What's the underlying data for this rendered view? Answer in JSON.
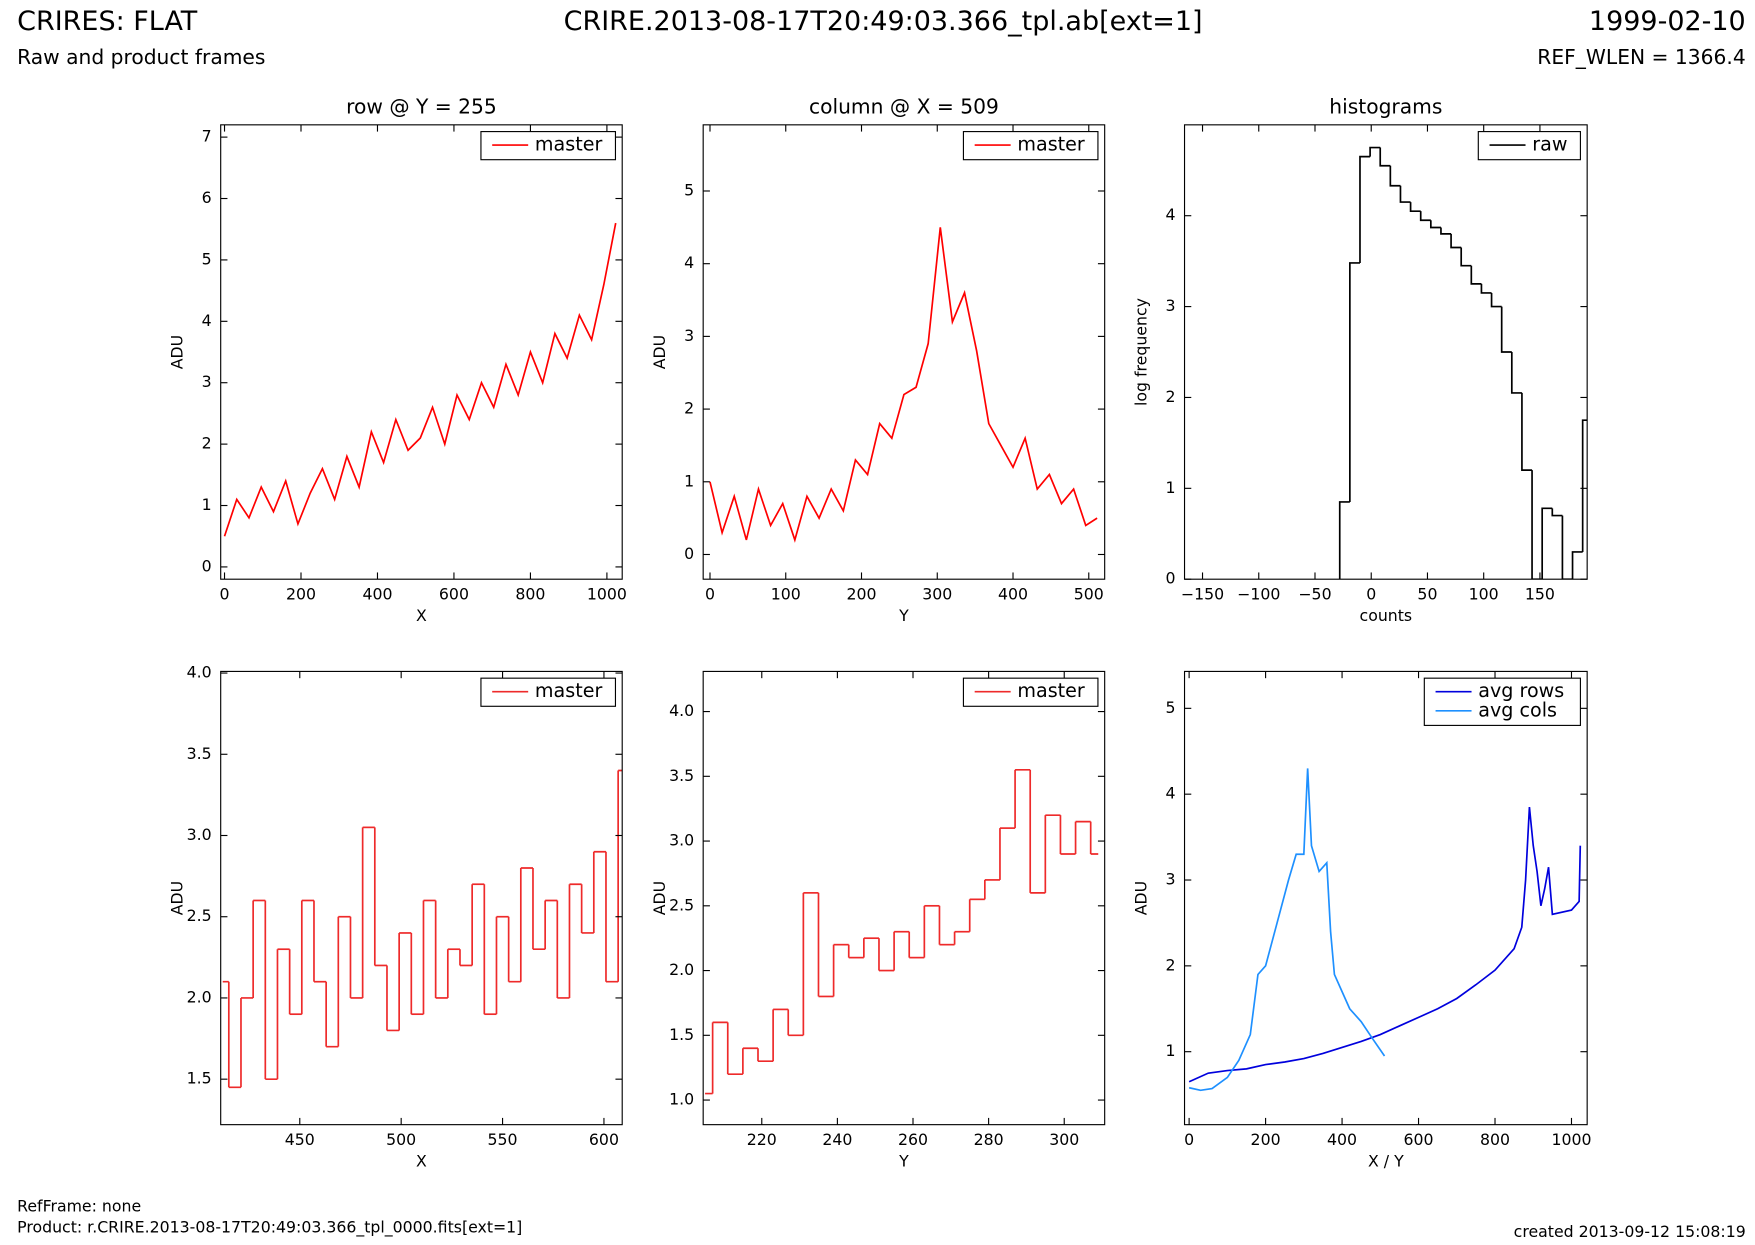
{
  "header": {
    "title": "CRIRES: FLAT",
    "subtitle": "Raw and product frames",
    "file": "CRIRE.2013-08-17T20:49:03.366_tpl.ab[ext=1]",
    "date": "1999-02-10",
    "ref_wlen": "REF_WLEN = 1366.4"
  },
  "footer": {
    "ref_frame": "RefFrame: none",
    "product": "Product: r.CRIRE.2013-08-17T20:49:03.366_tpl_0000.fits[ext=1]",
    "created": "created 2013-09-12 15:08:19"
  },
  "chart_data": [
    {
      "type": "line",
      "title": "row @ Y = 255",
      "xlabel": "X",
      "ylabel": "ADU",
      "legend": "upper right",
      "xlim": [
        -10,
        1040
      ],
      "ylim": [
        -0.2,
        7.2
      ],
      "xticks": [
        0,
        200,
        400,
        600,
        800,
        1000
      ],
      "yticks": [
        0,
        1,
        2,
        3,
        4,
        5,
        6,
        7
      ],
      "series": [
        {
          "name": "master",
          "color": "#ff0000",
          "x": [
            0,
            32,
            64,
            96,
            128,
            160,
            192,
            224,
            256,
            288,
            320,
            352,
            384,
            416,
            448,
            480,
            512,
            544,
            576,
            608,
            640,
            672,
            704,
            736,
            768,
            800,
            832,
            864,
            896,
            928,
            960,
            992,
            1023
          ],
          "values": [
            0.5,
            1.1,
            0.8,
            1.3,
            0.9,
            1.4,
            0.7,
            1.2,
            1.6,
            1.1,
            1.8,
            1.3,
            2.2,
            1.7,
            2.4,
            1.9,
            2.1,
            2.6,
            2.0,
            2.8,
            2.4,
            3.0,
            2.6,
            3.3,
            2.8,
            3.5,
            3.0,
            3.8,
            3.4,
            4.1,
            3.7,
            4.6,
            5.6
          ]
        }
      ]
    },
    {
      "type": "line",
      "title": "column @ X = 509",
      "xlabel": "Y",
      "ylabel": "ADU",
      "legend": "upper right",
      "xlim": [
        -9,
        521
      ],
      "ylim": [
        -0.34,
        5.91
      ],
      "xticks": [
        0,
        100,
        200,
        300,
        400,
        500
      ],
      "yticks": [
        0,
        1,
        2,
        3,
        4,
        5
      ],
      "series": [
        {
          "name": "master",
          "color": "#ff0000",
          "x": [
            0,
            16,
            32,
            48,
            64,
            80,
            96,
            112,
            128,
            144,
            160,
            176,
            192,
            208,
            224,
            240,
            256,
            272,
            288,
            304,
            320,
            336,
            352,
            368,
            384,
            400,
            416,
            432,
            448,
            464,
            480,
            496,
            511
          ],
          "values": [
            1.0,
            0.3,
            0.8,
            0.2,
            0.9,
            0.4,
            0.7,
            0.2,
            0.8,
            0.5,
            0.9,
            0.6,
            1.3,
            1.1,
            1.8,
            1.6,
            2.2,
            2.3,
            2.9,
            4.5,
            3.2,
            3.6,
            2.8,
            1.8,
            1.5,
            1.2,
            1.6,
            0.9,
            1.1,
            0.7,
            0.9,
            0.4,
            0.5
          ]
        }
      ]
    },
    {
      "type": "histogram",
      "title": "histograms",
      "xlabel": "counts",
      "ylabel": "log frequency",
      "legend": "upper right",
      "xlim": [
        -166,
        192
      ],
      "ylim": [
        0,
        5.0
      ],
      "xticks": [
        {
          "value": -150,
          "label": "−150"
        },
        {
          "value": -100,
          "label": "−100"
        },
        {
          "value": -50,
          "label": "−50"
        },
        0,
        50,
        100,
        150
      ],
      "yticks": [
        0,
        1,
        2,
        3,
        4
      ],
      "series": [
        {
          "name": "raw",
          "color": "#000000",
          "bins": [
            -28,
            -19,
            -10,
            -1,
            8,
            17,
            26,
            35,
            44,
            53,
            62,
            71,
            80,
            89,
            98,
            107,
            116,
            125,
            134,
            143,
            152,
            161,
            170,
            179,
            188,
            197
          ],
          "values": [
            0.85,
            3.48,
            4.65,
            4.75,
            4.55,
            4.33,
            4.15,
            4.05,
            3.95,
            3.87,
            3.8,
            3.65,
            3.45,
            3.25,
            3.15,
            3.0,
            2.5,
            2.05,
            1.2,
            0,
            0.78,
            0.7,
            0,
            0.3,
            1.75
          ]
        }
      ]
    },
    {
      "type": "line",
      "drawstyle": "steps",
      "xlabel": "X",
      "ylabel": "ADU",
      "legend": "upper right",
      "xlim": [
        411,
        609
      ],
      "ylim": [
        1.22,
        4.01
      ],
      "xticks": [
        450,
        500,
        550,
        600
      ],
      "yticks": [
        1.5,
        {
          "value": 2,
          "label": "2.0"
        },
        2.5,
        {
          "value": 3,
          "label": "3.0"
        },
        3.5,
        {
          "value": 4,
          "label": "4.0"
        }
      ],
      "series": [
        {
          "name": "master",
          "color": "#ee2a2a",
          "x": [
            412,
            418,
            424,
            430,
            436,
            442,
            448,
            454,
            460,
            466,
            472,
            478,
            484,
            490,
            496,
            502,
            508,
            514,
            520,
            526,
            532,
            538,
            544,
            550,
            556,
            562,
            568,
            574,
            580,
            586,
            592,
            598,
            604,
            610
          ],
          "values": [
            2.1,
            1.45,
            2.0,
            2.6,
            1.5,
            2.3,
            1.9,
            2.6,
            2.1,
            1.7,
            2.5,
            2.0,
            3.05,
            2.2,
            1.8,
            2.4,
            1.9,
            2.6,
            2.0,
            2.3,
            2.2,
            2.7,
            1.9,
            2.5,
            2.1,
            2.8,
            2.3,
            2.6,
            2.0,
            2.7,
            2.4,
            2.9,
            2.1,
            3.4
          ]
        }
      ]
    },
    {
      "type": "line",
      "drawstyle": "steps",
      "xlabel": "Y",
      "ylabel": "ADU",
      "legend": "upper right",
      "xlim": [
        204.5,
        310.7
      ],
      "ylim": [
        0.81,
        4.31
      ],
      "xticks": [
        220,
        240,
        260,
        280,
        300
      ],
      "yticks": [
        {
          "value": 1,
          "label": "1.0"
        },
        1.5,
        {
          "value": 2,
          "label": "2.0"
        },
        2.5,
        {
          "value": 3,
          "label": "3.0"
        },
        3.5,
        {
          "value": 4,
          "label": "4.0"
        }
      ],
      "series": [
        {
          "name": "master",
          "color": "#ee2a2a",
          "x": [
            205,
            209,
            213,
            217,
            221,
            225,
            229,
            233,
            237,
            241,
            245,
            249,
            253,
            257,
            261,
            265,
            269,
            273,
            277,
            281,
            285,
            289,
            293,
            297,
            301,
            305,
            309
          ],
          "values": [
            1.05,
            1.6,
            1.2,
            1.4,
            1.3,
            1.7,
            1.5,
            2.6,
            1.8,
            2.2,
            2.1,
            2.25,
            2.0,
            2.3,
            2.1,
            2.5,
            2.2,
            2.3,
            2.55,
            2.7,
            3.1,
            3.55,
            2.6,
            3.2,
            2.9,
            3.15,
            2.9
          ]
        }
      ]
    },
    {
      "type": "line",
      "xlabel": "X / Y",
      "ylabel": "ADU",
      "legend": "upper right",
      "xlim": [
        -12,
        1041
      ],
      "ylim": [
        0.15,
        5.43
      ],
      "xticks": [
        0,
        200,
        400,
        600,
        800,
        1000
      ],
      "yticks": [
        1,
        2,
        3,
        4,
        5
      ],
      "series": [
        {
          "name": "avg rows",
          "color": "#0000dd",
          "x": [
            0,
            50,
            100,
            150,
            200,
            250,
            300,
            350,
            400,
            450,
            500,
            550,
            600,
            650,
            700,
            750,
            800,
            850,
            870,
            880,
            890,
            900,
            910,
            920,
            930,
            940,
            950,
            1000,
            1020,
            1023
          ],
          "values": [
            0.65,
            0.75,
            0.78,
            0.8,
            0.85,
            0.88,
            0.92,
            0.98,
            1.05,
            1.12,
            1.2,
            1.3,
            1.4,
            1.5,
            1.62,
            1.78,
            1.95,
            2.2,
            2.45,
            3.0,
            3.85,
            3.4,
            3.1,
            2.7,
            2.9,
            3.15,
            2.6,
            2.65,
            2.75,
            3.4
          ]
        },
        {
          "name": "avg cols",
          "color": "#1e90ff",
          "x": [
            0,
            30,
            60,
            100,
            130,
            160,
            180,
            200,
            230,
            260,
            280,
            300,
            310,
            320,
            340,
            360,
            370,
            380,
            400,
            420,
            450,
            480,
            511
          ],
          "values": [
            0.58,
            0.55,
            0.57,
            0.7,
            0.9,
            1.2,
            1.9,
            2.0,
            2.5,
            3.0,
            3.3,
            3.3,
            4.3,
            3.4,
            3.1,
            3.2,
            2.4,
            1.9,
            1.7,
            1.5,
            1.35,
            1.15,
            0.95
          ]
        }
      ]
    }
  ]
}
